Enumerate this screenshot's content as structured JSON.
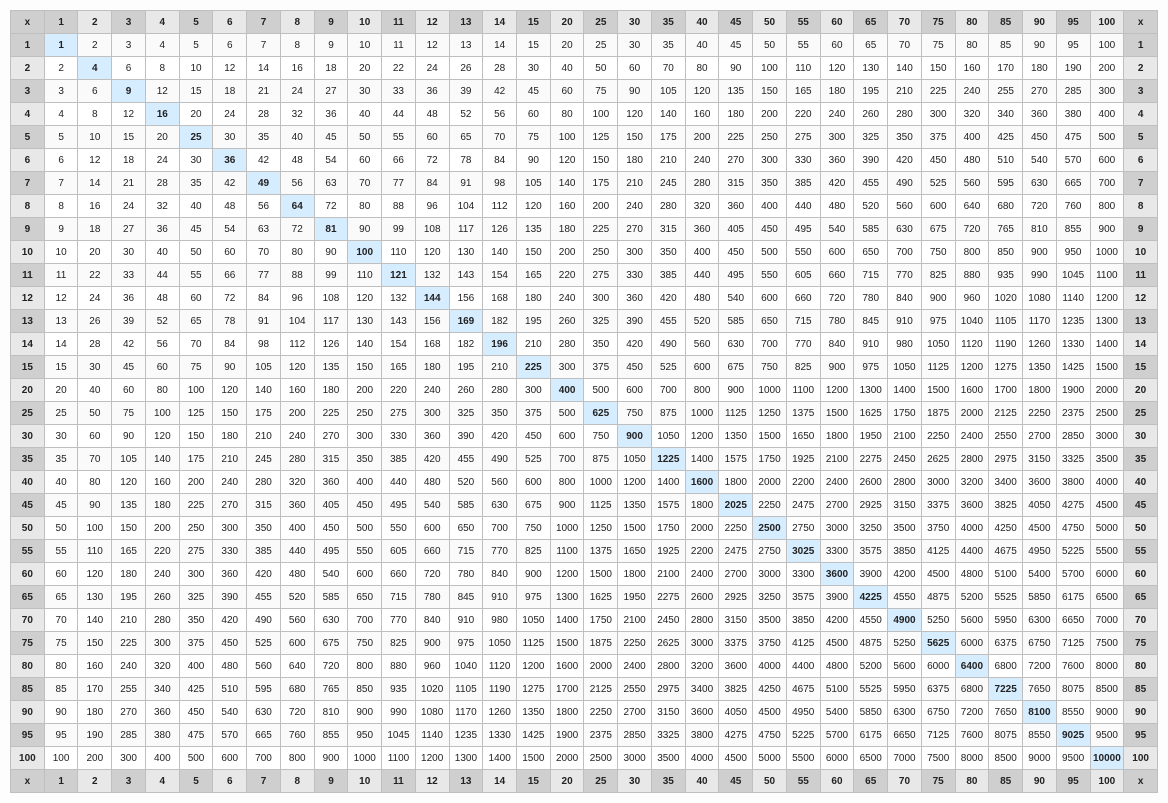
{
  "table": {
    "type": "table",
    "corner_label": "x",
    "factors": [
      1,
      2,
      3,
      4,
      5,
      6,
      7,
      8,
      9,
      10,
      11,
      12,
      13,
      14,
      15,
      20,
      25,
      30,
      35,
      40,
      45,
      50,
      55,
      60,
      65,
      70,
      75,
      80,
      85,
      90,
      95,
      100
    ],
    "colors": {
      "header_dark": "#cfcfcf",
      "header_light": "#e8e8e8",
      "corner": "#cfcfcf",
      "diagonal": "#d6ecff",
      "cell_bg": "#ffffff",
      "border": "#bfbfbf",
      "text": "#222222"
    }
  }
}
